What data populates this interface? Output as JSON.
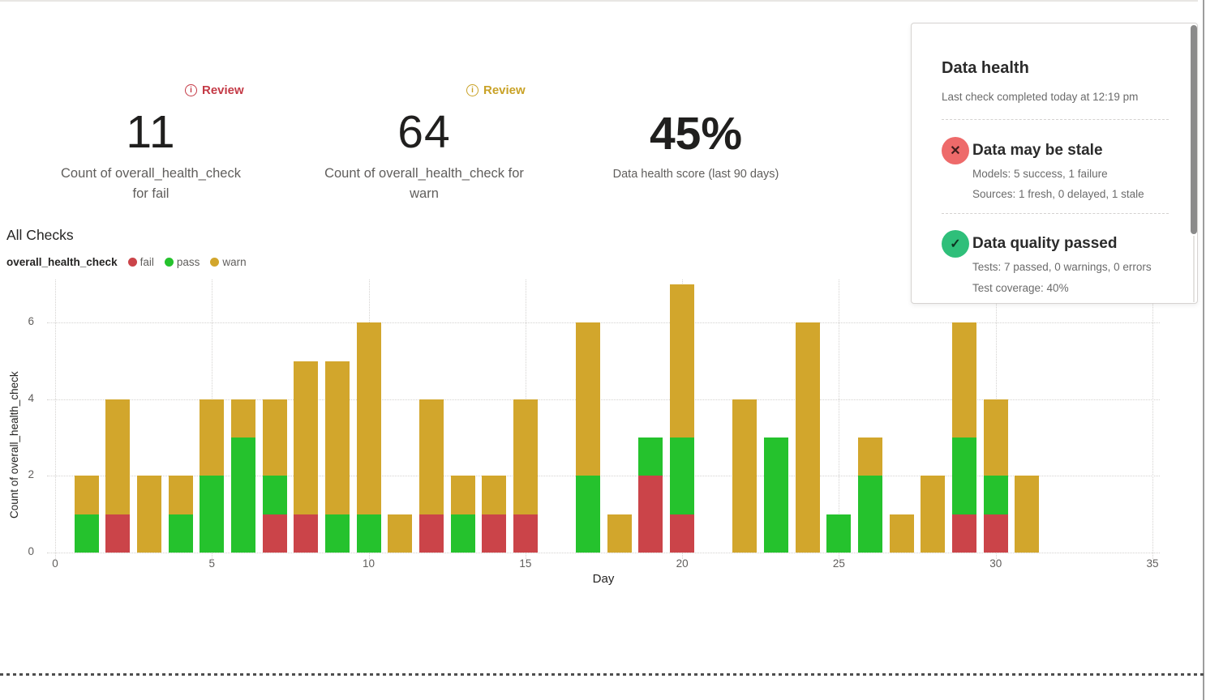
{
  "metrics": [
    {
      "value": "11",
      "label": "Count of overall_health_check for fail",
      "badge": "Review",
      "badge_color": "#c43a46"
    },
    {
      "value": "64",
      "label": "Count of overall_health_check for warn",
      "badge": "Review",
      "badge_color": "#c9a227"
    },
    {
      "value": "45%",
      "label": "Data health score (last 90 days)"
    }
  ],
  "chart_section": {
    "title": "All Checks",
    "legend_title": "overall_health_check",
    "legend": [
      {
        "label": "fail",
        "color": "#cb4449"
      },
      {
        "label": "pass",
        "color": "#25c22d"
      },
      {
        "label": "warn",
        "color": "#d2a62c"
      }
    ]
  },
  "chart_data": {
    "type": "bar",
    "stacked": true,
    "title": "All Checks",
    "xlabel": "Day",
    "ylabel": "Count of overall_health_check",
    "xlim": [
      0,
      35
    ],
    "ylim": [
      0,
      7
    ],
    "x_ticks": [
      0,
      5,
      10,
      15,
      20,
      25,
      30,
      35
    ],
    "y_ticks": [
      0,
      2,
      4,
      6
    ],
    "grid": "dotted",
    "legend_position": "top-left",
    "x": [
      1,
      2,
      3,
      4,
      5,
      6,
      7,
      8,
      9,
      10,
      11,
      12,
      13,
      14,
      15,
      16,
      17,
      18,
      19,
      20,
      21,
      22,
      23,
      24,
      25,
      26,
      27,
      28,
      29,
      30,
      31
    ],
    "series": [
      {
        "name": "fail",
        "color": "#cb4449",
        "values": [
          0,
          1,
          0,
          0,
          0,
          0,
          1,
          1,
          0,
          0,
          0,
          1,
          0,
          1,
          1,
          0,
          0,
          0,
          2,
          1,
          0,
          0,
          0,
          0,
          0,
          0,
          0,
          0,
          1,
          1,
          0
        ]
      },
      {
        "name": "pass",
        "color": "#25c22d",
        "values": [
          1,
          0,
          0,
          1,
          2,
          3,
          1,
          0,
          1,
          1,
          0,
          0,
          1,
          0,
          0,
          0,
          2,
          0,
          1,
          2,
          0,
          0,
          3,
          0,
          1,
          2,
          0,
          0,
          2,
          1,
          0
        ]
      },
      {
        "name": "warn",
        "color": "#d2a62c",
        "values": [
          1,
          3,
          2,
          1,
          2,
          1,
          2,
          4,
          4,
          5,
          1,
          3,
          1,
          1,
          3,
          0,
          4,
          1,
          0,
          4,
          0,
          4,
          0,
          6,
          0,
          1,
          1,
          2,
          3,
          2,
          2
        ]
      }
    ]
  },
  "panel": {
    "title": "Data health",
    "subtitle": "Last check completed today at 12:19 pm",
    "sections": [
      {
        "icon_glyph": "✕",
        "icon_color": "#ee6a6a",
        "title": "Data may be stale",
        "lines": [
          "Models: 5 success, 1 failure",
          "Sources: 1 fresh, 0 delayed, 1 stale"
        ]
      },
      {
        "icon_glyph": "✓",
        "icon_color": "#2fbf7a",
        "title": "Data quality passed",
        "lines": [
          "Tests: 7 passed, 0 warnings, 0 errors",
          "Test coverage: 40%"
        ]
      }
    ]
  }
}
